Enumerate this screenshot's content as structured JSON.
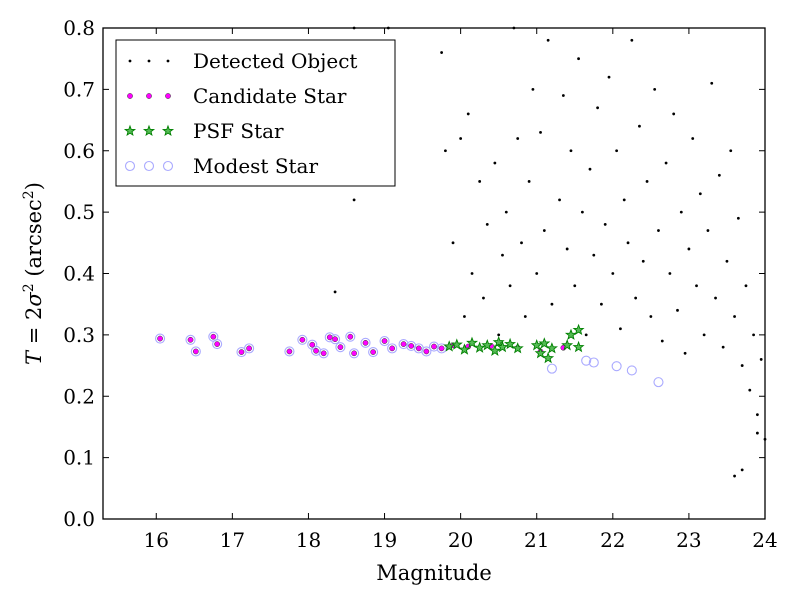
{
  "chart_data": {
    "type": "scatter",
    "xlabel": "Magnitude",
    "ylabel": "T = 2σ² (arcsec²)",
    "ylabel_parts": {
      "t": "T",
      "eq": " = 2",
      "sigma": "σ",
      "sup2": "2",
      "unit_open": " (arcsec",
      "unit_sup": "2",
      "unit_close": ")"
    },
    "xlim": [
      15.3,
      24
    ],
    "ylim": [
      0.0,
      0.8
    ],
    "xticks": [
      16,
      17,
      18,
      19,
      20,
      21,
      22,
      23,
      24
    ],
    "yticks": [
      0.0,
      0.1,
      0.2,
      0.3,
      0.4,
      0.5,
      0.6,
      0.7,
      0.8
    ],
    "ytick_labels": [
      "0.0",
      "0.1",
      "0.2",
      "0.3",
      "0.4",
      "0.5",
      "0.6",
      "0.7",
      "0.8"
    ],
    "grid": false,
    "legend_position": "top-left",
    "series": [
      {
        "name": "Detected Object",
        "marker": "dot",
        "color": "#000000",
        "points": [
          [
            18.6,
            0.52
          ],
          [
            18.35,
            0.37
          ],
          [
            18.6,
            0.8
          ],
          [
            19.05,
            0.8
          ],
          [
            19.75,
            0.76
          ],
          [
            19.8,
            0.6
          ],
          [
            19.9,
            0.45
          ],
          [
            20.0,
            0.62
          ],
          [
            20.05,
            0.33
          ],
          [
            20.1,
            0.66
          ],
          [
            20.15,
            0.4
          ],
          [
            20.25,
            0.55
          ],
          [
            20.3,
            0.36
          ],
          [
            20.35,
            0.48
          ],
          [
            20.45,
            0.58
          ],
          [
            20.5,
            0.3
          ],
          [
            20.55,
            0.43
          ],
          [
            20.6,
            0.5
          ],
          [
            20.65,
            0.38
          ],
          [
            20.7,
            0.8
          ],
          [
            20.75,
            0.62
          ],
          [
            20.8,
            0.45
          ],
          [
            20.85,
            0.33
          ],
          [
            20.9,
            0.55
          ],
          [
            20.95,
            0.7
          ],
          [
            21.0,
            0.4
          ],
          [
            21.05,
            0.63
          ],
          [
            21.1,
            0.47
          ],
          [
            21.15,
            0.78
          ],
          [
            21.2,
            0.35
          ],
          [
            21.3,
            0.52
          ],
          [
            21.35,
            0.69
          ],
          [
            21.4,
            0.44
          ],
          [
            21.45,
            0.6
          ],
          [
            21.5,
            0.38
          ],
          [
            21.55,
            0.75
          ],
          [
            21.6,
            0.5
          ],
          [
            21.65,
            0.3
          ],
          [
            21.7,
            0.57
          ],
          [
            21.75,
            0.43
          ],
          [
            21.8,
            0.67
          ],
          [
            21.85,
            0.35
          ],
          [
            21.9,
            0.48
          ],
          [
            21.95,
            0.72
          ],
          [
            22.0,
            0.4
          ],
          [
            22.05,
            0.6
          ],
          [
            22.1,
            0.31
          ],
          [
            22.15,
            0.52
          ],
          [
            22.2,
            0.45
          ],
          [
            22.25,
            0.78
          ],
          [
            22.3,
            0.36
          ],
          [
            22.35,
            0.64
          ],
          [
            22.4,
            0.42
          ],
          [
            22.45,
            0.55
          ],
          [
            22.5,
            0.33
          ],
          [
            22.55,
            0.7
          ],
          [
            22.6,
            0.47
          ],
          [
            22.65,
            0.29
          ],
          [
            22.7,
            0.58
          ],
          [
            22.75,
            0.4
          ],
          [
            22.8,
            0.66
          ],
          [
            22.85,
            0.34
          ],
          [
            22.9,
            0.5
          ],
          [
            22.95,
            0.27
          ],
          [
            23.0,
            0.44
          ],
          [
            23.05,
            0.62
          ],
          [
            23.1,
            0.38
          ],
          [
            23.15,
            0.53
          ],
          [
            23.2,
            0.3
          ],
          [
            23.25,
            0.47
          ],
          [
            23.3,
            0.71
          ],
          [
            23.35,
            0.36
          ],
          [
            23.4,
            0.56
          ],
          [
            23.45,
            0.28
          ],
          [
            23.5,
            0.42
          ],
          [
            23.55,
            0.6
          ],
          [
            23.6,
            0.33
          ],
          [
            23.65,
            0.49
          ],
          [
            23.7,
            0.25
          ],
          [
            23.75,
            0.38
          ],
          [
            23.8,
            0.21
          ],
          [
            23.85,
            0.3
          ],
          [
            23.9,
            0.17
          ],
          [
            23.95,
            0.26
          ],
          [
            23.6,
            0.07
          ],
          [
            23.7,
            0.08
          ],
          [
            23.9,
            0.14
          ],
          [
            24.0,
            0.13
          ]
        ]
      },
      {
        "name": "Candidate Star",
        "marker": "circle",
        "color": "#ff00ff",
        "points": [
          [
            16.05,
            0.294
          ],
          [
            16.45,
            0.292
          ],
          [
            16.52,
            0.273
          ],
          [
            16.75,
            0.297
          ],
          [
            16.8,
            0.285
          ],
          [
            17.12,
            0.272
          ],
          [
            17.22,
            0.278
          ],
          [
            17.75,
            0.273
          ],
          [
            17.92,
            0.292
          ],
          [
            18.05,
            0.284
          ],
          [
            18.1,
            0.274
          ],
          [
            18.2,
            0.27
          ],
          [
            18.28,
            0.296
          ],
          [
            18.35,
            0.293
          ],
          [
            18.42,
            0.28
          ],
          [
            18.55,
            0.297
          ],
          [
            18.6,
            0.27
          ],
          [
            18.75,
            0.287
          ],
          [
            18.85,
            0.272
          ],
          [
            19.0,
            0.29
          ],
          [
            19.1,
            0.278
          ],
          [
            19.25,
            0.285
          ],
          [
            19.35,
            0.282
          ],
          [
            19.45,
            0.278
          ],
          [
            19.55,
            0.273
          ],
          [
            19.65,
            0.281
          ],
          [
            19.75,
            0.278
          ],
          [
            19.9,
            0.283
          ],
          [
            20.1,
            0.281
          ],
          [
            20.4,
            0.282
          ],
          [
            20.75,
            0.279
          ],
          [
            21.05,
            0.273
          ],
          [
            21.35,
            0.279
          ]
        ]
      },
      {
        "name": "PSF Star",
        "marker": "star",
        "color": "#008000",
        "points": [
          [
            19.85,
            0.281
          ],
          [
            19.95,
            0.284
          ],
          [
            20.05,
            0.276
          ],
          [
            20.15,
            0.287
          ],
          [
            20.25,
            0.279
          ],
          [
            20.35,
            0.283
          ],
          [
            20.45,
            0.274
          ],
          [
            20.5,
            0.288
          ],
          [
            20.55,
            0.28
          ],
          [
            20.65,
            0.285
          ],
          [
            20.75,
            0.278
          ],
          [
            21.0,
            0.283
          ],
          [
            21.05,
            0.27
          ],
          [
            21.1,
            0.286
          ],
          [
            21.15,
            0.262
          ],
          [
            21.2,
            0.278
          ],
          [
            21.4,
            0.283
          ],
          [
            21.45,
            0.3
          ],
          [
            21.55,
            0.308
          ],
          [
            21.55,
            0.28
          ]
        ]
      },
      {
        "name": "Modest Star",
        "marker": "open-circle",
        "color": "#aaaaff",
        "points": [
          [
            16.05,
            0.294
          ],
          [
            16.45,
            0.292
          ],
          [
            16.52,
            0.273
          ],
          [
            16.75,
            0.297
          ],
          [
            16.8,
            0.285
          ],
          [
            17.12,
            0.272
          ],
          [
            17.22,
            0.278
          ],
          [
            17.75,
            0.273
          ],
          [
            17.92,
            0.292
          ],
          [
            18.05,
            0.284
          ],
          [
            18.1,
            0.274
          ],
          [
            18.2,
            0.27
          ],
          [
            18.28,
            0.296
          ],
          [
            18.35,
            0.293
          ],
          [
            18.42,
            0.28
          ],
          [
            18.55,
            0.297
          ],
          [
            18.6,
            0.27
          ],
          [
            18.75,
            0.287
          ],
          [
            18.85,
            0.272
          ],
          [
            19.0,
            0.29
          ],
          [
            19.1,
            0.278
          ],
          [
            19.25,
            0.285
          ],
          [
            19.35,
            0.282
          ],
          [
            19.45,
            0.278
          ],
          [
            19.55,
            0.273
          ],
          [
            19.65,
            0.281
          ],
          [
            19.75,
            0.278
          ],
          [
            21.2,
            0.245
          ],
          [
            21.65,
            0.258
          ],
          [
            21.75,
            0.255
          ],
          [
            22.05,
            0.249
          ],
          [
            22.25,
            0.242
          ],
          [
            22.6,
            0.223
          ]
        ]
      }
    ]
  }
}
